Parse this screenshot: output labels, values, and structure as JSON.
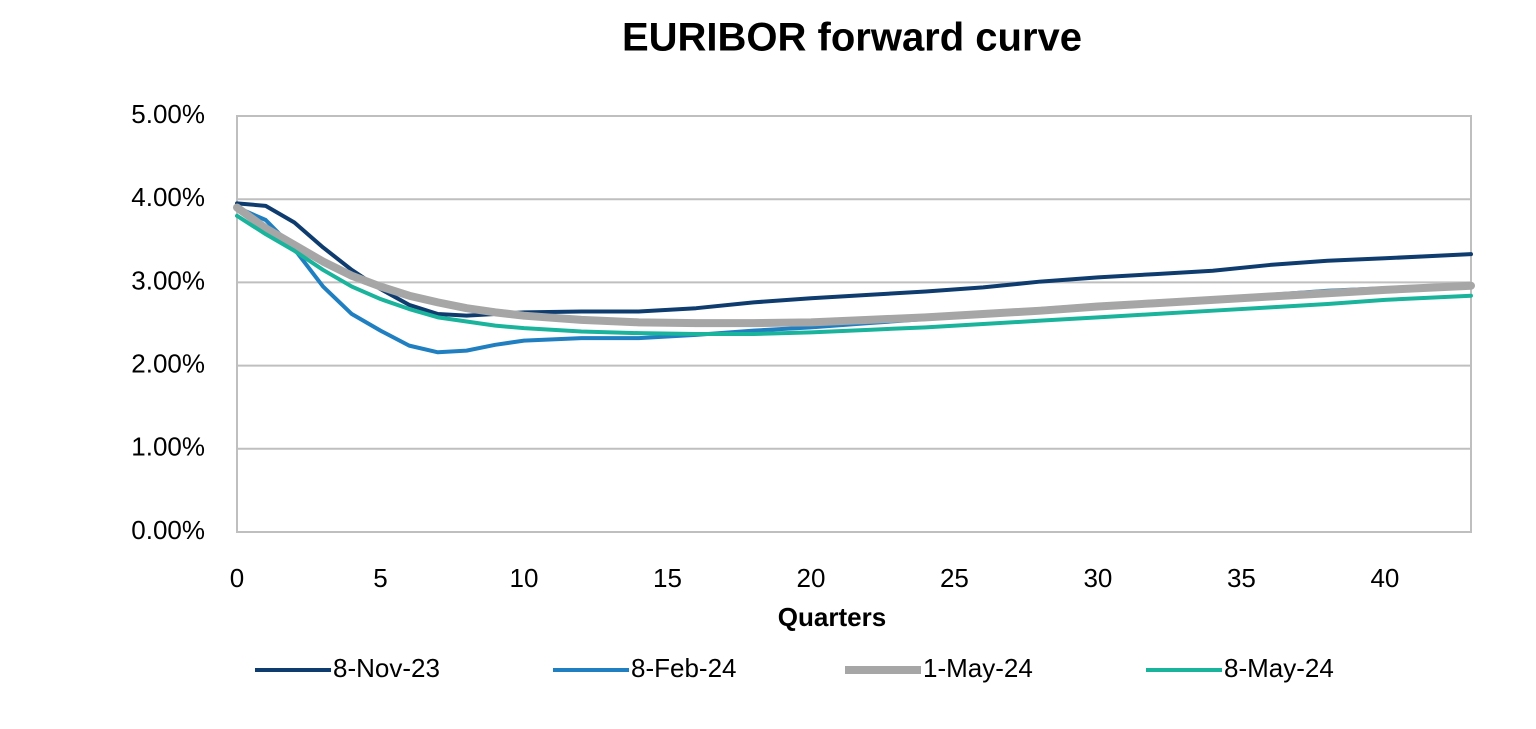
{
  "chart_data": {
    "type": "line",
    "title": "EURIBOR forward curve",
    "x_label": "Quarters",
    "x": [
      0,
      1,
      2,
      3,
      4,
      5,
      6,
      7,
      8,
      9,
      10,
      12,
      14,
      16,
      18,
      20,
      22,
      24,
      26,
      28,
      30,
      32,
      34,
      36,
      38,
      40,
      43
    ],
    "series": [
      {
        "name": "8-Nov-23",
        "color": "#0e3c6e",
        "values": [
          3.95,
          3.92,
          3.72,
          3.42,
          3.15,
          2.92,
          2.73,
          2.62,
          2.6,
          2.62,
          2.64,
          2.65,
          2.65,
          2.69,
          2.76,
          2.81,
          2.85,
          2.89,
          2.94,
          3.01,
          3.06,
          3.1,
          3.14,
          3.21,
          3.26,
          3.29,
          3.34
        ]
      },
      {
        "name": "8-Feb-24",
        "color": "#1f7fc0",
        "values": [
          3.9,
          3.75,
          3.4,
          2.95,
          2.62,
          2.42,
          2.24,
          2.16,
          2.18,
          2.25,
          2.3,
          2.33,
          2.33,
          2.37,
          2.42,
          2.46,
          2.51,
          2.56,
          2.62,
          2.68,
          2.73,
          2.77,
          2.8,
          2.85,
          2.9,
          2.93,
          2.97
        ]
      },
      {
        "name": "1-May-24",
        "color": "#a6a6a6",
        "values": [
          3.9,
          3.65,
          3.45,
          3.25,
          3.08,
          2.95,
          2.84,
          2.76,
          2.69,
          2.64,
          2.6,
          2.55,
          2.52,
          2.51,
          2.51,
          2.52,
          2.55,
          2.58,
          2.62,
          2.66,
          2.71,
          2.75,
          2.79,
          2.83,
          2.87,
          2.91,
          2.96
        ]
      },
      {
        "name": "8-May-24",
        "color": "#1ab39c",
        "values": [
          3.8,
          3.58,
          3.38,
          3.15,
          2.95,
          2.8,
          2.68,
          2.58,
          2.53,
          2.48,
          2.45,
          2.41,
          2.39,
          2.38,
          2.38,
          2.4,
          2.43,
          2.46,
          2.5,
          2.54,
          2.58,
          2.62,
          2.66,
          2.7,
          2.74,
          2.79,
          2.84
        ]
      }
    ],
    "xlim": [
      0,
      43
    ],
    "xticks": [
      0,
      5,
      10,
      15,
      20,
      25,
      30,
      35,
      40
    ],
    "ylim": [
      0,
      5
    ],
    "yticks": [
      {
        "value": 0,
        "label": "0.00%"
      },
      {
        "value": 1,
        "label": "1.00%"
      },
      {
        "value": 2,
        "label": "2.00%"
      },
      {
        "value": 3,
        "label": "3.00%"
      },
      {
        "value": 4,
        "label": "4.00%"
      },
      {
        "value": 5,
        "label": "5.00%"
      }
    ],
    "grid": true,
    "legend": "bottom"
  }
}
